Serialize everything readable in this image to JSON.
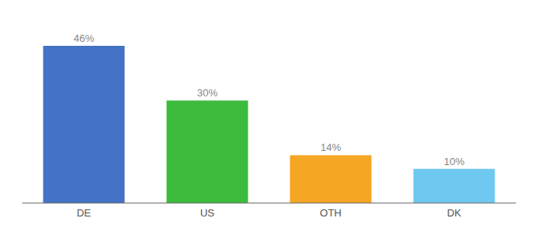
{
  "chart_data": {
    "type": "bar",
    "categories": [
      "DE",
      "US",
      "OTH",
      "DK"
    ],
    "values": [
      46,
      30,
      14,
      10
    ],
    "value_labels": [
      "46%",
      "30%",
      "14%",
      "10%"
    ],
    "colors": [
      "#4472c4",
      "#3dbb3d",
      "#f5a623",
      "#6fc8f0"
    ],
    "ylim": [
      0,
      52
    ],
    "data_labels": true,
    "tick_labels": "x"
  }
}
